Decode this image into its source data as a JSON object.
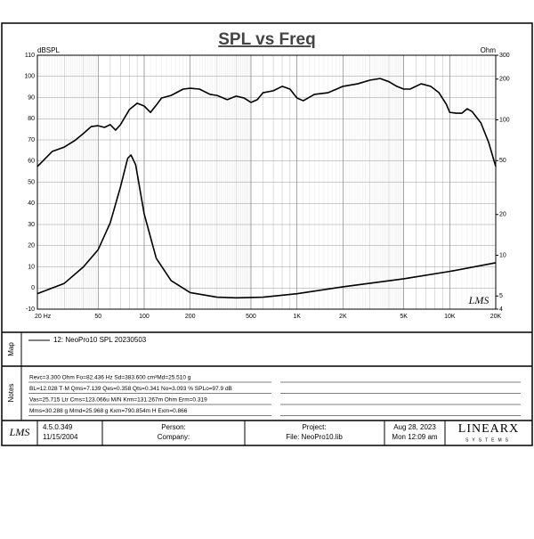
{
  "chart_data": {
    "type": "line",
    "title": "SPL vs Freq",
    "ylabel": "dBSPL",
    "y2label": "Ohm",
    "watermark": "LMS",
    "xscale": "log",
    "y2scale": "log",
    "grid": true,
    "minor_grid": true,
    "xlim": [
      20,
      20000
    ],
    "xticks": [
      {
        "value": 20,
        "label": "20  Hz"
      },
      50,
      100,
      200,
      500,
      {
        "value": 1000,
        "label": "1K"
      },
      {
        "value": 2000,
        "label": "2K"
      },
      {
        "value": 5000,
        "label": "5K"
      },
      {
        "value": 10000,
        "label": "10K"
      },
      {
        "value": 20000,
        "label": "20K"
      }
    ],
    "ylim": [
      -10,
      110
    ],
    "yticks": [
      -10,
      0,
      10,
      20,
      30,
      40,
      50,
      60,
      70,
      80,
      90,
      100,
      110
    ],
    "y2lim": [
      4,
      300
    ],
    "y2ticks": [
      4,
      5,
      10,
      20,
      50,
      100,
      200,
      300
    ],
    "legend": "12: NeoPro10  SPL 20230503",
    "series": [
      {
        "color": "#000000",
        "x": [
          20,
          25,
          30,
          35,
          40,
          45,
          50,
          55,
          60,
          65,
          70,
          80,
          90,
          100,
          110,
          120,
          130,
          150,
          180,
          200,
          230,
          270,
          300,
          350,
          400,
          450,
          500,
          550,
          600,
          700,
          800,
          900,
          1000,
          1100,
          1300,
          1600,
          2000,
          2500,
          3000,
          3500,
          4000,
          4500,
          5000,
          5500,
          6500,
          7500,
          8500,
          9500,
          10000,
          11000,
          12000,
          13000,
          14000,
          16000,
          18000,
          20000
        ],
        "values": [
          57.4,
          64.5,
          66.6,
          69.6,
          73,
          76.3,
          76.7,
          75.9,
          77.2,
          74.6,
          77.2,
          84.3,
          87.3,
          86,
          83,
          86.4,
          89.8,
          91,
          94,
          94.4,
          94,
          91.5,
          91,
          89,
          90.7,
          89.8,
          87.7,
          89,
          92.3,
          93.2,
          95.3,
          94,
          89.8,
          88.5,
          91.5,
          92.3,
          95.3,
          96.5,
          98.2,
          99,
          97.5,
          95.3,
          94,
          94,
          96.5,
          95.3,
          92.3,
          86.8,
          83,
          82.6,
          82.6,
          84.7,
          83.4,
          78,
          68.7,
          57.4
        ]
      },
      {
        "color": "#000000",
        "axis": "y2",
        "x": [
          20,
          30,
          40,
          50,
          60,
          70,
          78,
          82,
          88,
          100,
          120,
          150,
          200,
          300,
          400,
          600,
          1000,
          2000,
          5000,
          10000,
          20000
        ],
        "values": [
          5.2,
          6.2,
          8.2,
          11,
          17.4,
          32,
          52,
          55,
          46.5,
          20.2,
          9.5,
          6.5,
          5.3,
          4.9,
          4.85,
          4.9,
          5.2,
          5.85,
          6.7,
          7.6,
          8.8
        ]
      }
    ]
  },
  "map": {
    "label": "Map"
  },
  "notes": {
    "label": "Notes",
    "lines": [
      "Revc=3.300 Ohm  Fo=82.436 Hz  Sd=383.600 cm²Md=25.510 g",
      "BL=12.028 T·M  Qms=7.139  Qes=0.358  Qts=0.341  No=3.093 %  SPLo=97.9 dB",
      "Vas=25.715 Ltr  Cms=123.066u M/N  Krm=131.267m Ohm  Erm=0.319",
      "Mms=30.288 g  Mmd=25.968 g  Kxm=790.854m H  Exm=0.866"
    ]
  },
  "footer": {
    "logo": "LMS",
    "version": "4.5.0.349",
    "date": "11/15/2004",
    "person": "Person:",
    "company": "Company:",
    "project": "Project:",
    "file": "File: NeoPro10.lib",
    "run_date": "Aug 28, 2023",
    "run_time": "Mon 12:09 am",
    "brand": "LINEARX",
    "brand_sub": "SYSTEMS"
  }
}
